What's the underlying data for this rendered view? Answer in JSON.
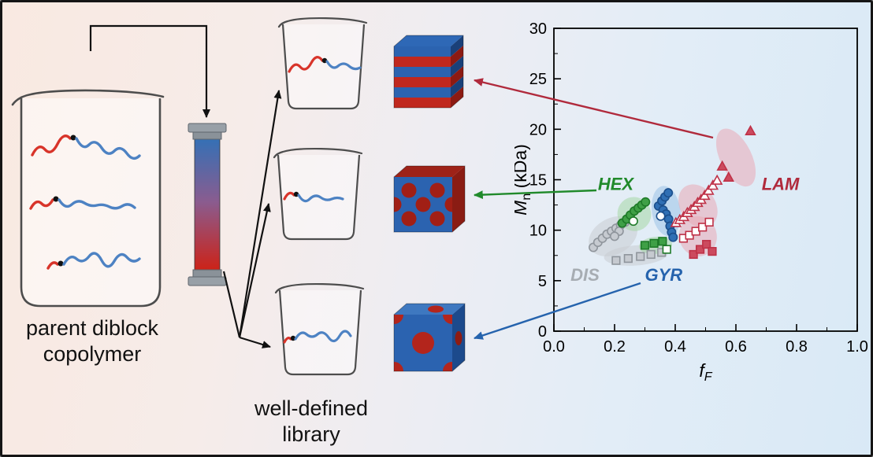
{
  "figure": {
    "labels": {
      "parent": [
        "parent diblock",
        "copolymer"
      ],
      "library": [
        "well-defined",
        "library"
      ]
    },
    "palette": {
      "polymer_red": "#d8342a",
      "polymer_blue": "#4d82c3",
      "column_top_blue": "#3570b5",
      "column_bottom_red": "#cc2318",
      "cap_gray": "#98a0a7",
      "arrow_black": "#111111",
      "arrow_red": "#b02a3c",
      "arrow_green": "#218a2b",
      "arrow_blue": "#2563ad"
    },
    "morphologies": [
      {
        "name": "lamellae-image",
        "phase": "LAM"
      },
      {
        "name": "hex-cylinders-image",
        "phase": "HEX"
      },
      {
        "name": "spheres-image",
        "phase": "GYR"
      }
    ]
  },
  "chart_data": {
    "type": "scatter",
    "title": "",
    "xlabel": {
      "main": "f",
      "sub": "F"
    },
    "ylabel": {
      "main": "M",
      "sub": "n",
      "suffix": " (kDa)"
    },
    "xlim": [
      0.0,
      1.0
    ],
    "ylim": [
      0,
      30
    ],
    "xticks": [
      {
        "v": 0.0,
        "label": "0.0"
      },
      {
        "v": 0.2,
        "label": "0.2"
      },
      {
        "v": 0.4,
        "label": "0.4"
      },
      {
        "v": 0.6,
        "label": "0.6"
      },
      {
        "v": 0.8,
        "label": "0.8"
      },
      {
        "v": 1.0,
        "label": "1.0"
      }
    ],
    "yticks": [
      {
        "v": 0,
        "label": "0"
      },
      {
        "v": 5,
        "label": "5"
      },
      {
        "v": 10,
        "label": "10"
      },
      {
        "v": 15,
        "label": "15"
      },
      {
        "v": 20,
        "label": "20"
      },
      {
        "v": 25,
        "label": "25"
      },
      {
        "v": 30,
        "label": "30"
      }
    ],
    "x_minor_step": 0.1,
    "y_minor_step": 2.5,
    "grid": false,
    "legend": "none",
    "regions": [
      {
        "label": "DIS",
        "text_color": "#a7adb3",
        "blob_color": "#c8ccd1",
        "label_pos": [
          0.055,
          5.0
        ],
        "blobs": [
          {
            "cx": 0.195,
            "cy": 9.4,
            "rx": 0.085,
            "ry": 1.8,
            "rot": -28
          },
          {
            "cx": 0.27,
            "cy": 7.5,
            "rx": 0.105,
            "ry": 1.0,
            "rot": -4
          }
        ]
      },
      {
        "label": "HEX",
        "text_color": "#218a2b",
        "blob_color": "#a6d7a6",
        "label_pos": [
          0.145,
          14.0
        ],
        "blobs": [
          {
            "cx": 0.265,
            "cy": 11.6,
            "rx": 0.055,
            "ry": 1.7,
            "rot": -32
          },
          {
            "cx": 0.335,
            "cy": 8.5,
            "rx": 0.055,
            "ry": 0.85,
            "rot": -6
          }
        ]
      },
      {
        "label": "GYR",
        "text_color": "#2563ad",
        "blob_color": "#9cc3e8",
        "label_pos": [
          0.3,
          5.0
        ],
        "blobs": [
          {
            "cx": 0.37,
            "cy": 11.9,
            "rx": 0.047,
            "ry": 2.5,
            "rot": -8
          }
        ]
      },
      {
        "label": "LAM",
        "text_color": "#b02a3c",
        "blob_color": "#eaa9b6",
        "label_pos": [
          0.685,
          14.0
        ],
        "blobs": [
          {
            "cx": 0.475,
            "cy": 9.4,
            "rx": 0.062,
            "ry": 2.0,
            "rot": -14
          },
          {
            "cx": 0.475,
            "cy": 12.4,
            "rx": 0.058,
            "ry": 2.3,
            "rot": -34
          },
          {
            "cx": 0.6,
            "cy": 17.2,
            "rx": 0.052,
            "ry": 3.1,
            "rot": -26
          }
        ]
      }
    ],
    "series": [
      {
        "name": "DIS",
        "color": "#8f959c",
        "fill": "#c6cad0",
        "groups": [
          {
            "marker": "circle",
            "filled": true,
            "points": [
              [
                0.13,
                8.3
              ],
              [
                0.145,
                8.8
              ],
              [
                0.16,
                9.2
              ],
              [
                0.175,
                9.6
              ],
              [
                0.19,
                9.9
              ],
              [
                0.205,
                10.2
              ],
              [
                0.22,
                10.5
              ],
              [
                0.235,
                10.8
              ],
              [
                0.215,
                9.9
              ],
              [
                0.2,
                9.4
              ]
            ]
          },
          {
            "marker": "square",
            "filled": true,
            "points": [
              [
                0.205,
                7.0
              ],
              [
                0.245,
                7.2
              ],
              [
                0.285,
                7.4
              ],
              [
                0.32,
                7.6
              ],
              [
                0.355,
                7.8
              ]
            ]
          }
        ]
      },
      {
        "name": "HEX",
        "color": "#1e7a28",
        "fill": "#3fa046",
        "groups": [
          {
            "marker": "circle",
            "filled": true,
            "points": [
              [
                0.225,
                10.7
              ],
              [
                0.24,
                11.1
              ],
              [
                0.252,
                11.5
              ],
              [
                0.265,
                11.9
              ],
              [
                0.278,
                12.2
              ],
              [
                0.29,
                12.5
              ],
              [
                0.302,
                12.8
              ]
            ]
          },
          {
            "marker": "circle",
            "filled": false,
            "points": [
              [
                0.262,
                10.9
              ]
            ]
          },
          {
            "marker": "square",
            "filled": true,
            "points": [
              [
                0.3,
                8.5
              ],
              [
                0.33,
                8.7
              ],
              [
                0.358,
                8.9
              ]
            ]
          },
          {
            "marker": "square",
            "filled": false,
            "points": [
              [
                0.372,
                8.1
              ]
            ]
          }
        ]
      },
      {
        "name": "GYR",
        "color": "#1b4f8c",
        "fill": "#2f6fb4",
        "groups": [
          {
            "marker": "circle",
            "filled": true,
            "points": [
              [
                0.345,
                12.4
              ],
              [
                0.356,
                12.9
              ],
              [
                0.366,
                13.3
              ],
              [
                0.377,
                13.7
              ],
              [
                0.36,
                12.0
              ],
              [
                0.37,
                11.6
              ],
              [
                0.378,
                11.1
              ],
              [
                0.383,
                10.4
              ],
              [
                0.388,
                9.8
              ],
              [
                0.393,
                9.3
              ]
            ]
          },
          {
            "marker": "circle",
            "filled": false,
            "points": [
              [
                0.352,
                11.4
              ]
            ]
          }
        ]
      },
      {
        "name": "LAM",
        "color": "#bf3147",
        "fill": "#cc4a5e",
        "groups": [
          {
            "marker": "triangle",
            "filled": false,
            "points": [
              [
                0.402,
                10.7
              ],
              [
                0.415,
                11.0
              ],
              [
                0.428,
                11.3
              ],
              [
                0.44,
                11.7
              ],
              [
                0.452,
                12.0
              ],
              [
                0.463,
                12.3
              ],
              [
                0.474,
                12.7
              ],
              [
                0.485,
                13.0
              ],
              [
                0.497,
                13.4
              ],
              [
                0.51,
                13.9
              ],
              [
                0.524,
                14.4
              ],
              [
                0.538,
                14.9
              ]
            ]
          },
          {
            "marker": "triangle",
            "filled": true,
            "points": [
              [
                0.555,
                16.3
              ],
              [
                0.576,
                15.2
              ],
              [
                0.648,
                19.8
              ]
            ]
          },
          {
            "marker": "square",
            "filled": false,
            "points": [
              [
                0.427,
                9.2
              ],
              [
                0.447,
                9.5
              ],
              [
                0.468,
                9.9
              ],
              [
                0.49,
                10.3
              ],
              [
                0.512,
                10.8
              ]
            ]
          },
          {
            "marker": "square",
            "filled": true,
            "points": [
              [
                0.46,
                7.6
              ],
              [
                0.482,
                8.1
              ],
              [
                0.503,
                8.6
              ],
              [
                0.522,
                7.9
              ]
            ]
          }
        ]
      }
    ]
  }
}
